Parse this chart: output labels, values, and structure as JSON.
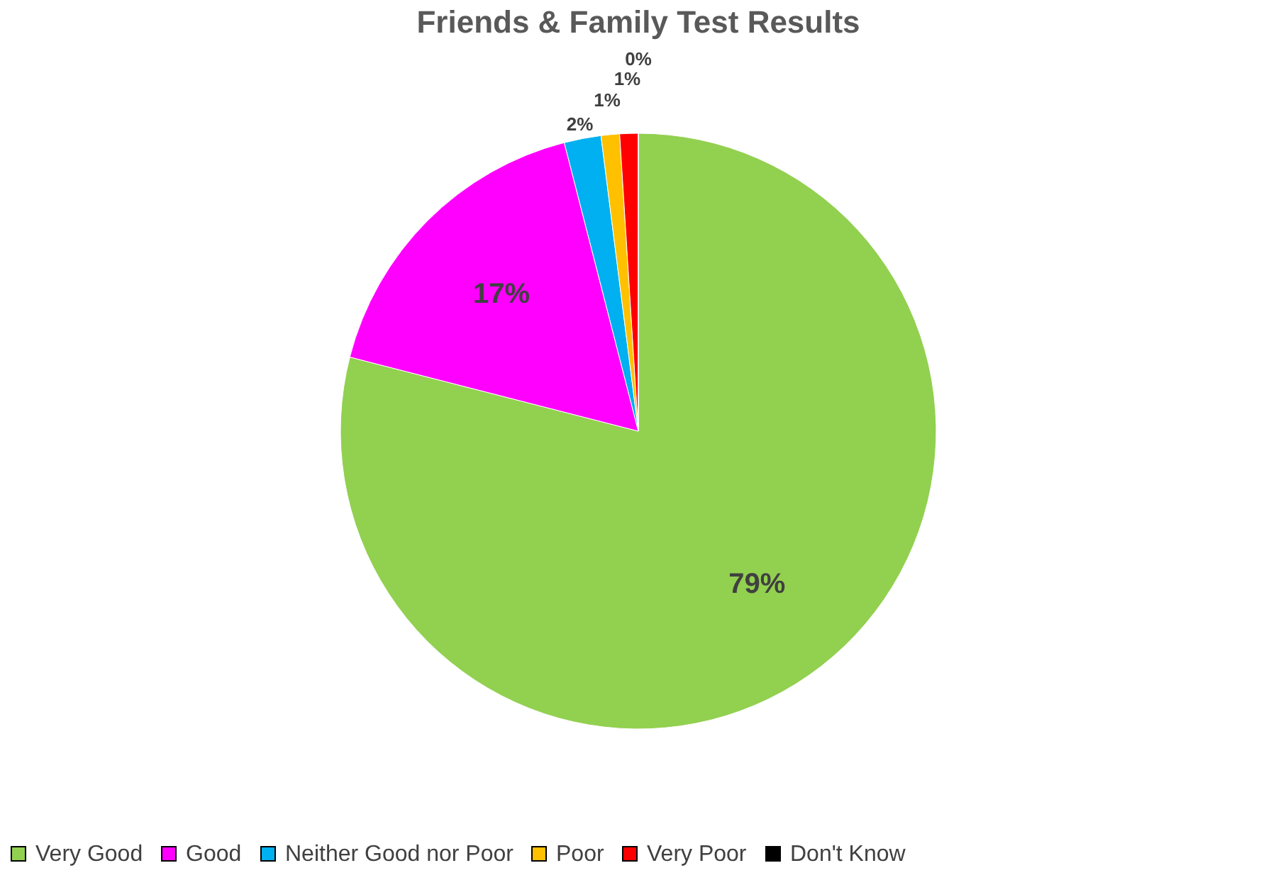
{
  "chart_data": {
    "type": "pie",
    "title": "Friends & Family Test Results",
    "categories": [
      "Very Good",
      "Good",
      "Neither Good nor Poor",
      "Poor",
      "Very Poor",
      "Don't Know"
    ],
    "values": [
      79,
      17,
      2,
      1,
      1,
      0
    ],
    "value_labels": [
      "79%",
      "17%",
      "2%",
      "1%",
      "1%",
      "0%"
    ],
    "colors": [
      "#92d050",
      "#ff00ff",
      "#00b0f0",
      "#ffc000",
      "#ff0000",
      "#000000"
    ],
    "legend": "bottom"
  }
}
